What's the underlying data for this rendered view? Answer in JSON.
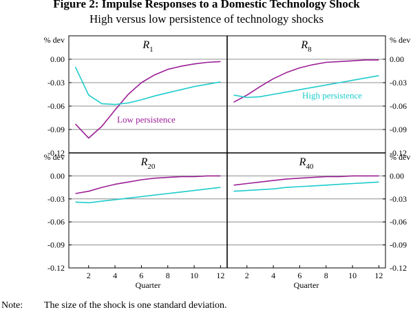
{
  "title": "Figure 2: Impulse Responses to a Domestic Technology Shock",
  "subtitle": "High versus low persistence of technology shocks",
  "note_label": "Note:",
  "note_text": "The size of the shock is one standard deviation.",
  "colors": {
    "low": "#9b1e96",
    "high": "#1ecbcb",
    "grid": "#8c8c8c",
    "axis": "#000000"
  },
  "chart_data": {
    "type": "line",
    "unit_label": "% dev",
    "xlabel": "Quarter",
    "xlim": [
      0.5,
      12.5
    ],
    "ylim": [
      -0.12,
      0.03
    ],
    "x_ticks": [
      2,
      4,
      6,
      8,
      10,
      12
    ],
    "y_ticks": [
      0.0,
      -0.03,
      -0.06,
      -0.09,
      -0.12
    ],
    "y_tick_labels": [
      "0.00",
      "-0.03",
      "-0.06",
      "-0.09",
      "-0.12"
    ],
    "x": [
      1,
      2,
      3,
      4,
      5,
      6,
      7,
      8,
      9,
      10,
      11,
      12
    ],
    "series_labels": {
      "low": "Low persistence",
      "high": "High persistence"
    },
    "panels": [
      {
        "id": "R1",
        "name": "R",
        "sub": "1",
        "series": [
          {
            "key": "low",
            "values": [
              -0.083,
              -0.101,
              -0.086,
              -0.065,
              -0.045,
              -0.03,
              -0.02,
              -0.013,
              -0.009,
              -0.006,
              -0.004,
              -0.003
            ]
          },
          {
            "key": "high",
            "values": [
              -0.01,
              -0.046,
              -0.057,
              -0.058,
              -0.056,
              -0.052,
              -0.047,
              -0.043,
              -0.039,
              -0.035,
              -0.032,
              -0.029
            ]
          }
        ]
      },
      {
        "id": "R8",
        "name": "R",
        "sub": "8",
        "series": [
          {
            "key": "low",
            "values": [
              -0.055,
              -0.046,
              -0.035,
              -0.025,
              -0.017,
              -0.011,
              -0.007,
              -0.004,
              -0.003,
              -0.002,
              -0.001,
              -0.001
            ]
          },
          {
            "key": "high",
            "values": [
              -0.046,
              -0.049,
              -0.048,
              -0.045,
              -0.042,
              -0.039,
              -0.036,
              -0.033,
              -0.03,
              -0.027,
              -0.024,
              -0.021
            ]
          }
        ]
      },
      {
        "id": "R20",
        "name": "R",
        "sub": "20",
        "series": [
          {
            "key": "low",
            "values": [
              -0.023,
              -0.02,
              -0.015,
              -0.011,
              -0.008,
              -0.005,
              -0.003,
              -0.002,
              -0.001,
              -0.001,
              0.0,
              0.0
            ]
          },
          {
            "key": "high",
            "values": [
              -0.034,
              -0.035,
              -0.033,
              -0.031,
              -0.029,
              -0.027,
              -0.025,
              -0.023,
              -0.021,
              -0.019,
              -0.017,
              -0.015
            ]
          }
        ]
      },
      {
        "id": "R40",
        "name": "R",
        "sub": "40",
        "series": [
          {
            "key": "low",
            "values": [
              -0.012,
              -0.01,
              -0.008,
              -0.006,
              -0.004,
              -0.003,
              -0.002,
              -0.001,
              -0.001,
              0.0,
              0.0,
              0.0
            ]
          },
          {
            "key": "high",
            "values": [
              -0.02,
              -0.019,
              -0.018,
              -0.017,
              -0.015,
              -0.014,
              -0.013,
              -0.012,
              -0.011,
              -0.01,
              -0.009,
              -0.008
            ]
          }
        ]
      }
    ]
  }
}
